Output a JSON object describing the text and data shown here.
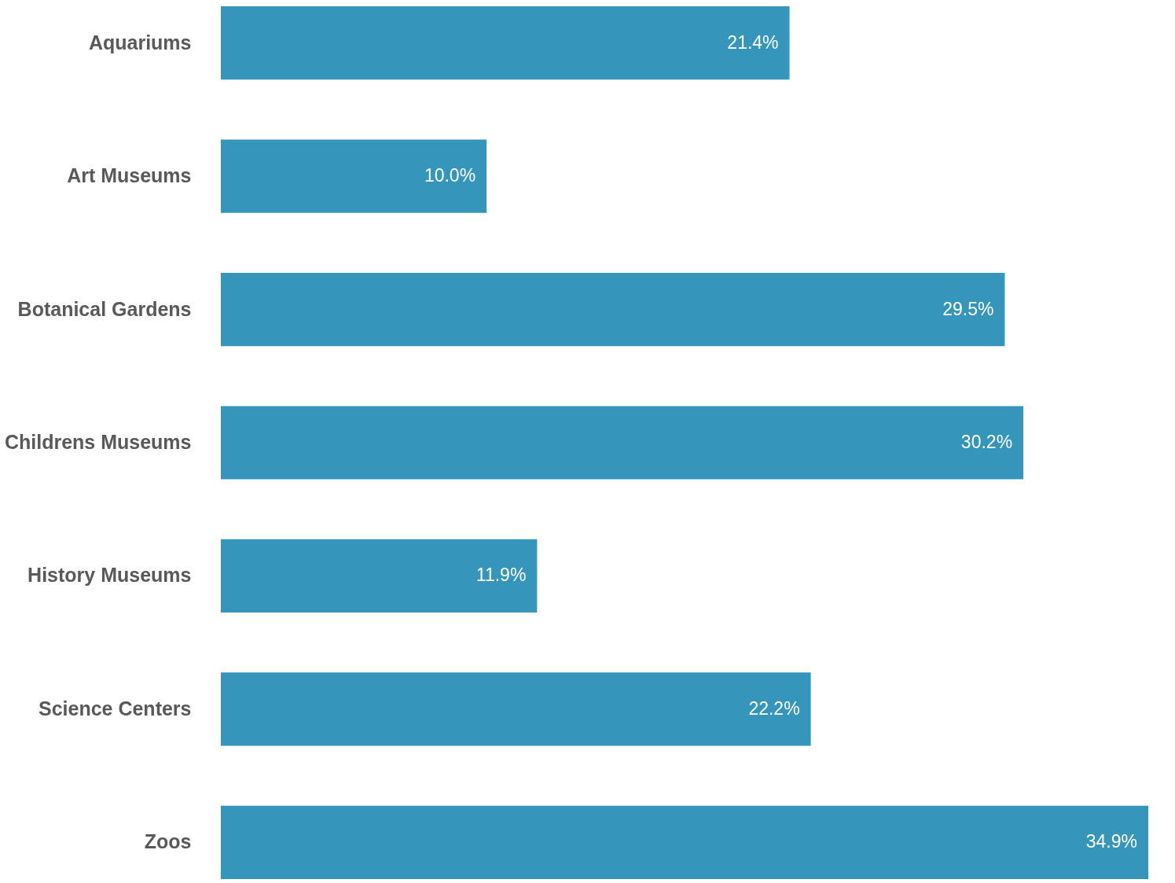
{
  "chart_data": {
    "type": "bar",
    "orientation": "horizontal",
    "categories": [
      "Aquariums",
      "Art Museums",
      "Botanical Gardens",
      "Childrens Museums",
      "History Museums",
      "Science Centers",
      "Zoos"
    ],
    "values": [
      21.4,
      10.0,
      29.5,
      30.2,
      11.9,
      22.2,
      34.9
    ],
    "value_labels": [
      "21.4%",
      "10.0%",
      "29.5%",
      "30.2%",
      "11.9%",
      "22.2%",
      "34.9%"
    ],
    "color": "#3595bb",
    "grid": false
  }
}
